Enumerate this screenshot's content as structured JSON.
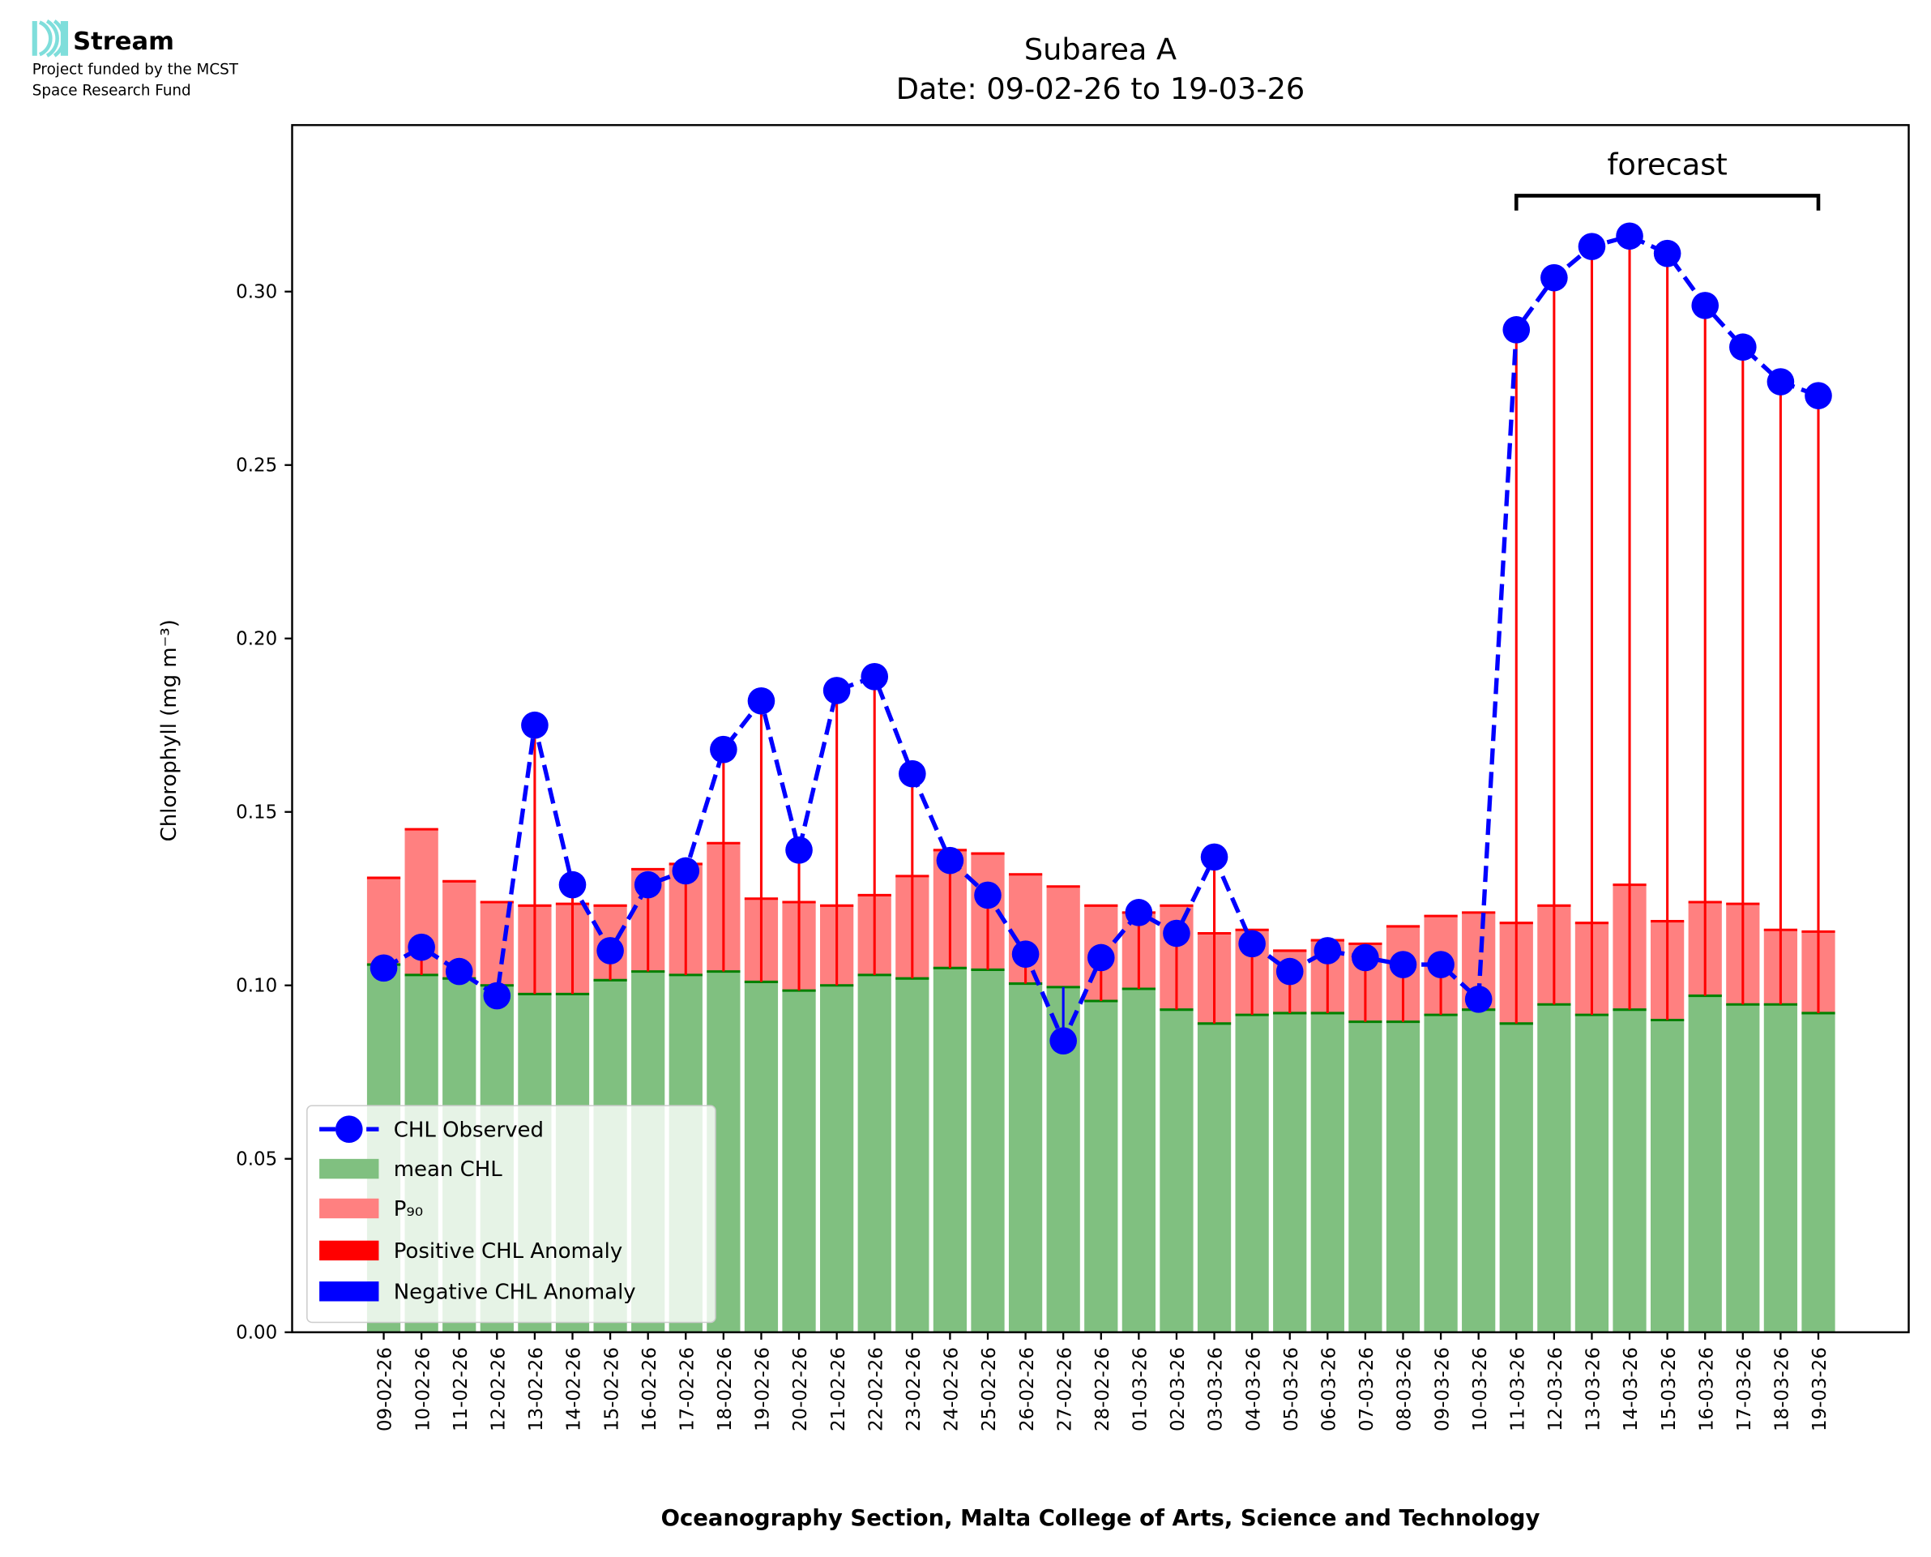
{
  "logo": {
    "name": "Stream",
    "line1": "Project funded by the MCST",
    "line2": "Space Research Fund",
    "color": "#7fdedb"
  },
  "chart_data": {
    "type": "bar",
    "title": "Subarea A",
    "subtitle": "Date: 09-02-26 to 19-03-26",
    "xlabel": "Oceanography Section, Malta College of Arts, Science and Technology",
    "ylabel": "Chlorophyll (mg m⁻³)",
    "ylim": [
      0,
      0.348
    ],
    "yticks": [
      "0.00",
      "0.05",
      "0.10",
      "0.15",
      "0.20",
      "0.25",
      "0.30"
    ],
    "grid": false,
    "legend_placement": "lower-left",
    "annotation": {
      "text": "forecast",
      "from": "11-03-26",
      "to": "19-03-26"
    },
    "categories": [
      "09-02-26",
      "10-02-26",
      "11-02-26",
      "12-02-26",
      "13-02-26",
      "14-02-26",
      "15-02-26",
      "16-02-26",
      "17-02-26",
      "18-02-26",
      "19-02-26",
      "20-02-26",
      "21-02-26",
      "22-02-26",
      "23-02-26",
      "24-02-26",
      "25-02-26",
      "26-02-26",
      "27-02-26",
      "28-02-26",
      "01-03-26",
      "02-03-26",
      "03-03-26",
      "04-03-26",
      "05-03-26",
      "06-03-26",
      "07-03-26",
      "08-03-26",
      "09-03-26",
      "10-03-26",
      "11-03-26",
      "12-03-26",
      "13-03-26",
      "14-03-26",
      "15-03-26",
      "16-03-26",
      "17-03-26",
      "18-03-26",
      "19-03-26"
    ],
    "series": [
      {
        "name": "CHL Observed",
        "type": "line",
        "color": "#0000ff",
        "values": [
          0.105,
          0.111,
          0.104,
          0.097,
          0.175,
          0.129,
          0.11,
          0.129,
          0.133,
          0.168,
          0.182,
          0.139,
          0.185,
          0.189,
          0.161,
          0.136,
          0.126,
          0.109,
          0.084,
          0.108,
          0.121,
          0.115,
          0.137,
          0.112,
          0.104,
          0.11,
          0.108,
          0.106,
          0.106,
          0.096,
          0.289,
          0.304,
          0.313,
          0.316,
          0.311,
          0.296,
          0.284,
          0.274,
          0.27
        ]
      },
      {
        "name": "mean CHL",
        "type": "bar",
        "color": "#80c080",
        "values": [
          0.106,
          0.103,
          0.102,
          0.1,
          0.0975,
          0.0975,
          0.1015,
          0.104,
          0.103,
          0.104,
          0.101,
          0.0985,
          0.1,
          0.103,
          0.102,
          0.105,
          0.1045,
          0.1005,
          0.0995,
          0.0955,
          0.099,
          0.093,
          0.089,
          0.0915,
          0.092,
          0.092,
          0.0895,
          0.0895,
          0.0915,
          0.093,
          0.089,
          0.0945,
          0.0915,
          0.093,
          0.09,
          0.097,
          0.0945,
          0.0945,
          0.092
        ]
      },
      {
        "name": "P₉₀",
        "type": "bar",
        "color": "#ff8080",
        "values": [
          0.131,
          0.145,
          0.13,
          0.124,
          0.123,
          0.1235,
          0.123,
          0.1335,
          0.135,
          0.141,
          0.125,
          0.124,
          0.123,
          0.126,
          0.1315,
          0.139,
          0.138,
          0.132,
          0.1285,
          0.123,
          0.121,
          0.123,
          0.115,
          0.116,
          0.11,
          0.113,
          0.112,
          0.117,
          0.12,
          0.121,
          0.118,
          0.123,
          0.118,
          0.129,
          0.1185,
          0.124,
          0.1235,
          0.116,
          0.1155
        ]
      },
      {
        "name": "Positive CHL Anomaly",
        "type": "stem",
        "color": "#ff0000"
      },
      {
        "name": "Negative CHL Anomaly",
        "type": "stem",
        "color": "#0000ff"
      }
    ]
  }
}
